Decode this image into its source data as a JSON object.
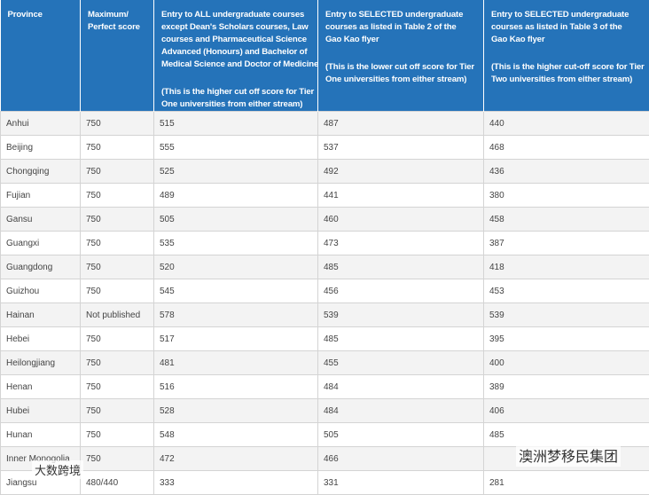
{
  "table": {
    "header": [
      {
        "lines": [
          "Province"
        ]
      },
      {
        "lines": [
          "Maximum/",
          "Perfect score"
        ]
      },
      {
        "lines": [
          "Entry to ALL undergraduate courses",
          "except Dean's Scholars courses, Law",
          "courses and Pharmaceutical Science",
          "Advanced (Honours) and Bachelor of",
          "Medical Science and Doctor of Medicine"
        ],
        "note": [
          "(This is the higher cut off score for Tier",
          "One universities from either stream)"
        ]
      },
      {
        "lines": [
          "Entry to SELECTED undergraduate",
          "courses as listed in Table 2 of the",
          "Gao Kao flyer"
        ],
        "note": [
          "(This is the lower cut off score for Tier",
          "One universities from either stream)"
        ]
      },
      {
        "lines": [
          "Entry to SELECTED undergraduate",
          "courses as listed in Table 3 of the",
          "Gao Kao flyer"
        ],
        "note": [
          "(This is the higher cut-off score for Tier",
          "Two universities from either stream)"
        ]
      }
    ],
    "rows": [
      [
        "Anhui",
        "750",
        "515",
        "487",
        "440"
      ],
      [
        "Beijing",
        "750",
        "555",
        "537",
        "468"
      ],
      [
        "Chongqing",
        "750",
        "525",
        "492",
        "436"
      ],
      [
        "Fujian",
        "750",
        "489",
        "441",
        "380"
      ],
      [
        "Gansu",
        "750",
        "505",
        "460",
        "458"
      ],
      [
        "Guangxi",
        "750",
        "535",
        "473",
        "387"
      ],
      [
        "Guangdong",
        "750",
        "520",
        "485",
        "418"
      ],
      [
        "Guizhou",
        "750",
        "545",
        "456",
        "453"
      ],
      [
        "Hainan",
        "Not published",
        "578",
        "539",
        "539"
      ],
      [
        "Hebei",
        "750",
        "517",
        "485",
        "395"
      ],
      [
        "Heilongjiang",
        "750",
        "481",
        "455",
        "400"
      ],
      [
        "Henan",
        "750",
        "516",
        "484",
        "389"
      ],
      [
        "Hubei",
        "750",
        "528",
        "484",
        "406"
      ],
      [
        "Hunan",
        "750",
        "548",
        "505",
        "485"
      ],
      [
        "Inner Monogolia",
        "750",
        "472",
        "466",
        ""
      ],
      [
        "Jiangsu",
        "480/440",
        "333",
        "331",
        "281"
      ]
    ]
  },
  "watermarks": [
    "澳洲梦移民集团",
    "大数跨境"
  ]
}
